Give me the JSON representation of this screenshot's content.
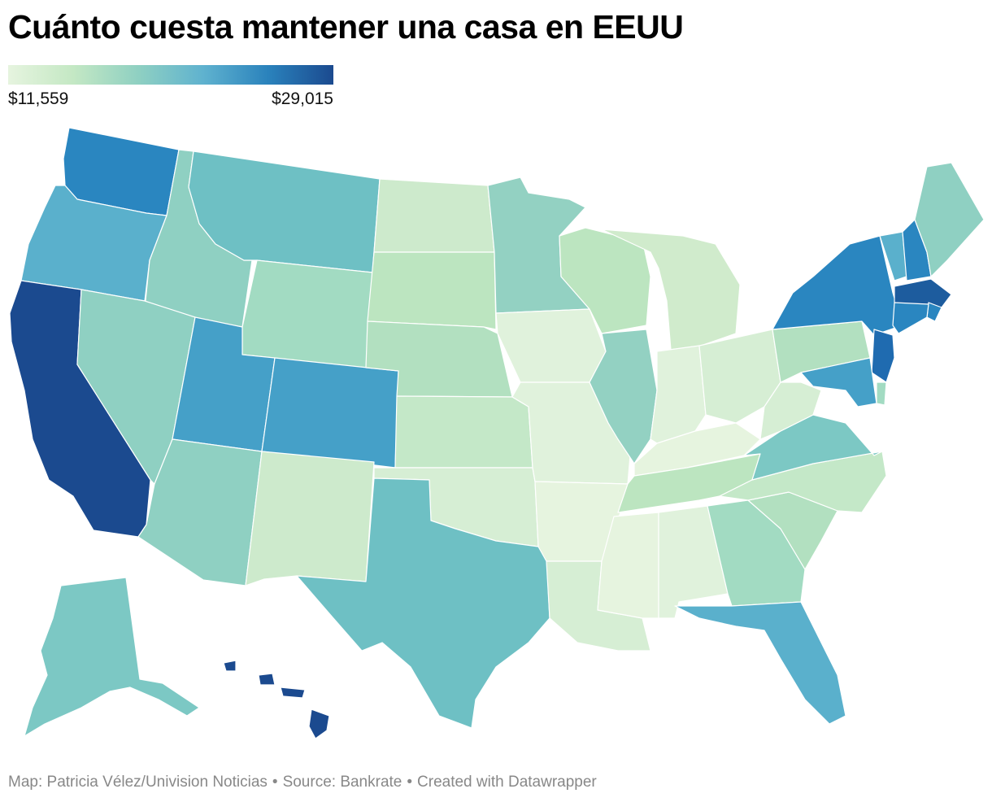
{
  "title": "Cuánto cuesta mantener una casa en EEUU",
  "legend": {
    "min_label": "$11,559",
    "max_label": "$29,015",
    "min_value": 11559,
    "max_value": 29015
  },
  "footer": {
    "credit": "Map: Patricia Vélez/Univision Noticias",
    "source": "Source: Bankrate",
    "tool": "Created with Datawrapper"
  },
  "colors": {
    "darkest": "#1b4a8f",
    "dark": "#2a82bc",
    "blue": "#45a0c8",
    "teal_blue": "#5cb2ca",
    "teal": "#6ec0c4",
    "aqua": "#8fd0c2",
    "mint": "#a7dbc0",
    "light_green": "#c4e8c8",
    "pale_green": "#d6eed4",
    "palest": "#e6f4df"
  },
  "states": [
    {
      "code": "WA",
      "color": "#2a86c0"
    },
    {
      "code": "OR",
      "color": "#5ab0cc"
    },
    {
      "code": "CA",
      "color": "#1b4a8f"
    },
    {
      "code": "ID",
      "color": "#8fd0c2"
    },
    {
      "code": "NV",
      "color": "#8fd0c2"
    },
    {
      "code": "MT",
      "color": "#6ec0c4"
    },
    {
      "code": "WY",
      "color": "#a2dbc2"
    },
    {
      "code": "UT",
      "color": "#45a0c8"
    },
    {
      "code": "CO",
      "color": "#45a0c8"
    },
    {
      "code": "AZ",
      "color": "#8fd0c2"
    },
    {
      "code": "NM",
      "color": "#cdeacc"
    },
    {
      "code": "ND",
      "color": "#cdeacc"
    },
    {
      "code": "SD",
      "color": "#bce5c0"
    },
    {
      "code": "NE",
      "color": "#b2e0c0"
    },
    {
      "code": "KS",
      "color": "#c4e8c8"
    },
    {
      "code": "OK",
      "color": "#d6eed4"
    },
    {
      "code": "TX",
      "color": "#6ec0c4"
    },
    {
      "code": "MN",
      "color": "#93d1c2"
    },
    {
      "code": "IA",
      "color": "#e0f2dc"
    },
    {
      "code": "MO",
      "color": "#e0f2dc"
    },
    {
      "code": "AR",
      "color": "#e6f4df"
    },
    {
      "code": "LA",
      "color": "#d6eed4"
    },
    {
      "code": "WI",
      "color": "#bce5c0"
    },
    {
      "code": "IL",
      "color": "#93d1c2"
    },
    {
      "code": "MI",
      "color": "#d0ebcc"
    },
    {
      "code": "IN",
      "color": "#e0f2dc"
    },
    {
      "code": "OH",
      "color": "#d6eed4"
    },
    {
      "code": "KY",
      "color": "#e6f4df"
    },
    {
      "code": "TN",
      "color": "#bce5c0"
    },
    {
      "code": "MS",
      "color": "#e6f4df"
    },
    {
      "code": "AL",
      "color": "#e0f2dc"
    },
    {
      "code": "GA",
      "color": "#a2dbc2"
    },
    {
      "code": "FL",
      "color": "#5ab0cc"
    },
    {
      "code": "SC",
      "color": "#b2e0c0"
    },
    {
      "code": "NC",
      "color": "#c4e8c8"
    },
    {
      "code": "VA",
      "color": "#7cc8c4"
    },
    {
      "code": "WV",
      "color": "#d6eed4"
    },
    {
      "code": "PA",
      "color": "#b2e0c0"
    },
    {
      "code": "NY",
      "color": "#2a86c0"
    },
    {
      "code": "VT",
      "color": "#5ab0cc"
    },
    {
      "code": "NH",
      "color": "#2a86c0"
    },
    {
      "code": "ME",
      "color": "#8fd0c2"
    },
    {
      "code": "MA",
      "color": "#1d5c9e"
    },
    {
      "code": "CT",
      "color": "#2a86c0"
    },
    {
      "code": "RI",
      "color": "#2a86c0"
    },
    {
      "code": "NJ",
      "color": "#1f6bb0"
    },
    {
      "code": "MD",
      "color": "#45a0c8"
    },
    {
      "code": "DE",
      "color": "#a2dbc2"
    },
    {
      "code": "AK",
      "color": "#7cc8c4"
    },
    {
      "code": "HI",
      "color": "#1b4a8f"
    }
  ]
}
